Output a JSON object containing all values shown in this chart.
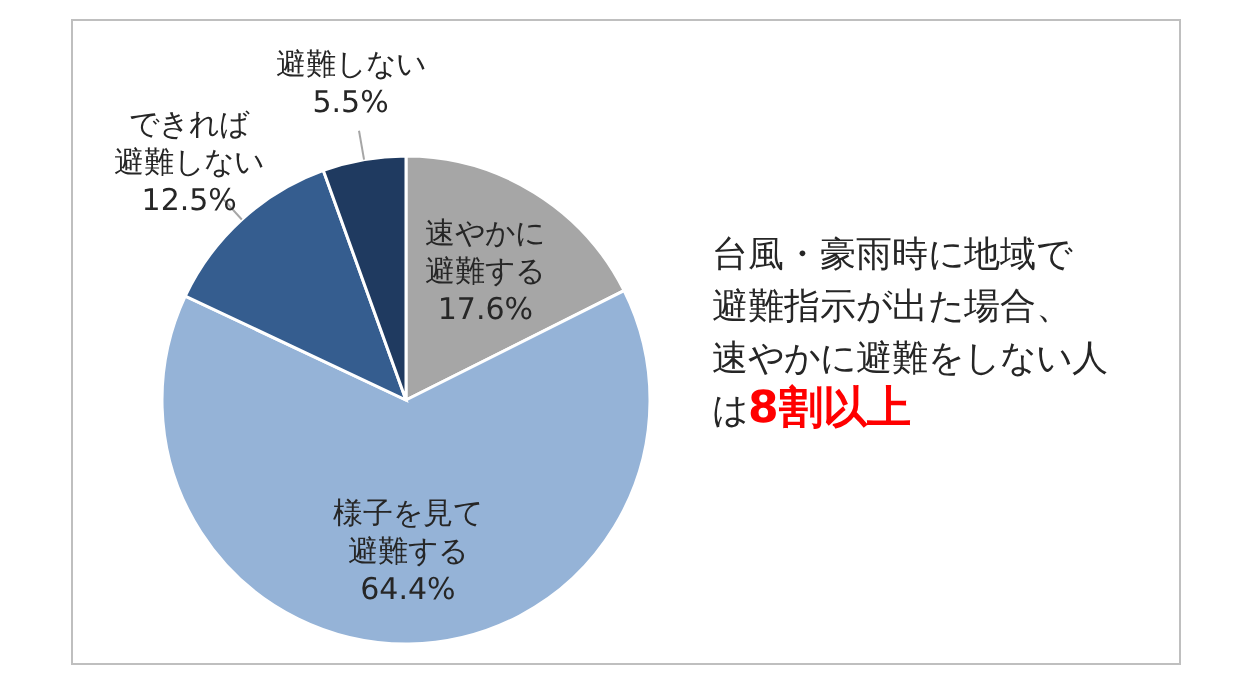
{
  "chart_data": {
    "type": "pie",
    "categories": [
      "速やかに避難する",
      "様子を見て避難する",
      "できれば避難しない",
      "避難しない"
    ],
    "values": [
      17.6,
      64.4,
      12.5,
      5.5
    ],
    "value_labels": [
      "17.6%",
      "64.4%",
      "12.5%",
      "5.5%"
    ],
    "colors": [
      "#a6a6a6",
      "#95b3d7",
      "#355d8f",
      "#1f3a60"
    ],
    "annotations": [
      "台風・豪雨時に地域で",
      "避難指示が出た場合、",
      "速やかに避難をしない人",
      "は",
      "8割以上"
    ]
  }
}
